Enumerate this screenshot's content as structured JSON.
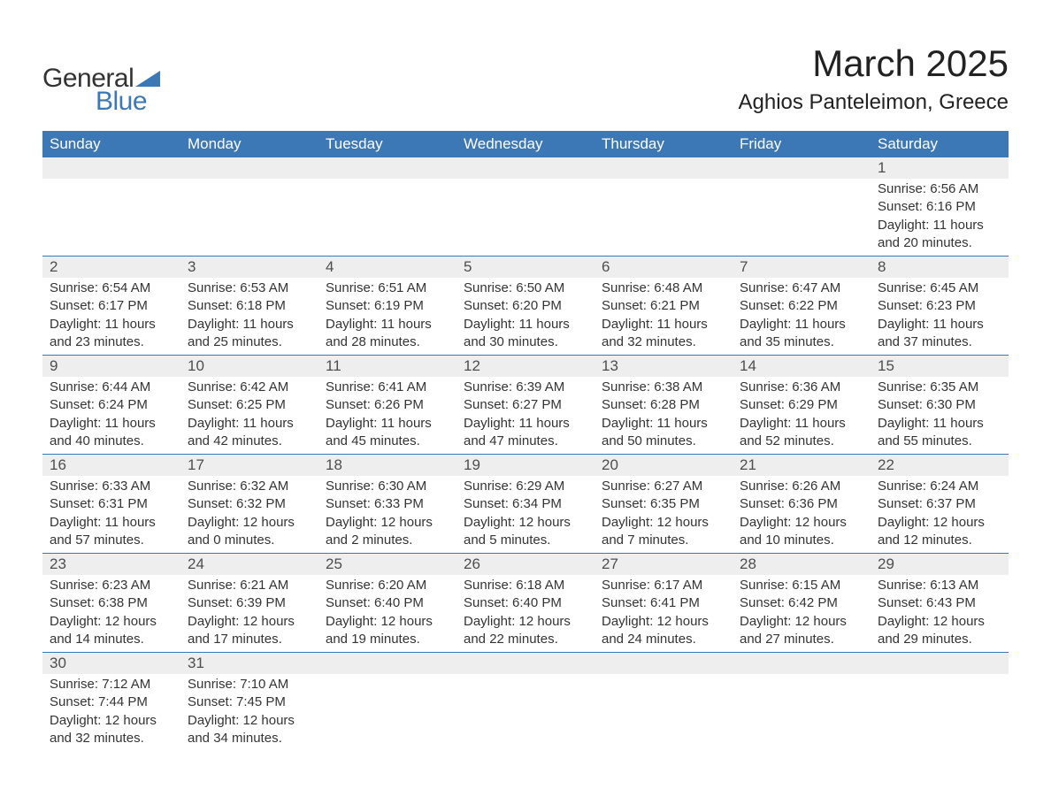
{
  "logo": {
    "line1": "General",
    "line2": "Blue"
  },
  "month_title": "March 2025",
  "location": "Aghios Panteleimon, Greece",
  "weekdays": [
    "Sunday",
    "Monday",
    "Tuesday",
    "Wednesday",
    "Thursday",
    "Friday",
    "Saturday"
  ],
  "colors": {
    "header_bg": "#3d78b6",
    "header_text": "#ffffff",
    "day_header_bg": "#eeeeee",
    "body_text": "#343434",
    "row_border": "#3d78b6",
    "background": "#ffffff"
  },
  "typography": {
    "month_title_fontsize": 42,
    "location_fontsize": 24,
    "weekday_fontsize": 17,
    "daynum_fontsize": 17,
    "body_fontsize": 15
  },
  "layout": {
    "columns": 7,
    "rows": 6,
    "first_day_column_index": 6
  },
  "weeks": [
    [
      null,
      null,
      null,
      null,
      null,
      null,
      {
        "n": "1",
        "sunrise": "Sunrise: 6:56 AM",
        "sunset": "Sunset: 6:16 PM",
        "daylight1": "Daylight: 11 hours",
        "daylight2": "and 20 minutes."
      }
    ],
    [
      {
        "n": "2",
        "sunrise": "Sunrise: 6:54 AM",
        "sunset": "Sunset: 6:17 PM",
        "daylight1": "Daylight: 11 hours",
        "daylight2": "and 23 minutes."
      },
      {
        "n": "3",
        "sunrise": "Sunrise: 6:53 AM",
        "sunset": "Sunset: 6:18 PM",
        "daylight1": "Daylight: 11 hours",
        "daylight2": "and 25 minutes."
      },
      {
        "n": "4",
        "sunrise": "Sunrise: 6:51 AM",
        "sunset": "Sunset: 6:19 PM",
        "daylight1": "Daylight: 11 hours",
        "daylight2": "and 28 minutes."
      },
      {
        "n": "5",
        "sunrise": "Sunrise: 6:50 AM",
        "sunset": "Sunset: 6:20 PM",
        "daylight1": "Daylight: 11 hours",
        "daylight2": "and 30 minutes."
      },
      {
        "n": "6",
        "sunrise": "Sunrise: 6:48 AM",
        "sunset": "Sunset: 6:21 PM",
        "daylight1": "Daylight: 11 hours",
        "daylight2": "and 32 minutes."
      },
      {
        "n": "7",
        "sunrise": "Sunrise: 6:47 AM",
        "sunset": "Sunset: 6:22 PM",
        "daylight1": "Daylight: 11 hours",
        "daylight2": "and 35 minutes."
      },
      {
        "n": "8",
        "sunrise": "Sunrise: 6:45 AM",
        "sunset": "Sunset: 6:23 PM",
        "daylight1": "Daylight: 11 hours",
        "daylight2": "and 37 minutes."
      }
    ],
    [
      {
        "n": "9",
        "sunrise": "Sunrise: 6:44 AM",
        "sunset": "Sunset: 6:24 PM",
        "daylight1": "Daylight: 11 hours",
        "daylight2": "and 40 minutes."
      },
      {
        "n": "10",
        "sunrise": "Sunrise: 6:42 AM",
        "sunset": "Sunset: 6:25 PM",
        "daylight1": "Daylight: 11 hours",
        "daylight2": "and 42 minutes."
      },
      {
        "n": "11",
        "sunrise": "Sunrise: 6:41 AM",
        "sunset": "Sunset: 6:26 PM",
        "daylight1": "Daylight: 11 hours",
        "daylight2": "and 45 minutes."
      },
      {
        "n": "12",
        "sunrise": "Sunrise: 6:39 AM",
        "sunset": "Sunset: 6:27 PM",
        "daylight1": "Daylight: 11 hours",
        "daylight2": "and 47 minutes."
      },
      {
        "n": "13",
        "sunrise": "Sunrise: 6:38 AM",
        "sunset": "Sunset: 6:28 PM",
        "daylight1": "Daylight: 11 hours",
        "daylight2": "and 50 minutes."
      },
      {
        "n": "14",
        "sunrise": "Sunrise: 6:36 AM",
        "sunset": "Sunset: 6:29 PM",
        "daylight1": "Daylight: 11 hours",
        "daylight2": "and 52 minutes."
      },
      {
        "n": "15",
        "sunrise": "Sunrise: 6:35 AM",
        "sunset": "Sunset: 6:30 PM",
        "daylight1": "Daylight: 11 hours",
        "daylight2": "and 55 minutes."
      }
    ],
    [
      {
        "n": "16",
        "sunrise": "Sunrise: 6:33 AM",
        "sunset": "Sunset: 6:31 PM",
        "daylight1": "Daylight: 11 hours",
        "daylight2": "and 57 minutes."
      },
      {
        "n": "17",
        "sunrise": "Sunrise: 6:32 AM",
        "sunset": "Sunset: 6:32 PM",
        "daylight1": "Daylight: 12 hours",
        "daylight2": "and 0 minutes."
      },
      {
        "n": "18",
        "sunrise": "Sunrise: 6:30 AM",
        "sunset": "Sunset: 6:33 PM",
        "daylight1": "Daylight: 12 hours",
        "daylight2": "and 2 minutes."
      },
      {
        "n": "19",
        "sunrise": "Sunrise: 6:29 AM",
        "sunset": "Sunset: 6:34 PM",
        "daylight1": "Daylight: 12 hours",
        "daylight2": "and 5 minutes."
      },
      {
        "n": "20",
        "sunrise": "Sunrise: 6:27 AM",
        "sunset": "Sunset: 6:35 PM",
        "daylight1": "Daylight: 12 hours",
        "daylight2": "and 7 minutes."
      },
      {
        "n": "21",
        "sunrise": "Sunrise: 6:26 AM",
        "sunset": "Sunset: 6:36 PM",
        "daylight1": "Daylight: 12 hours",
        "daylight2": "and 10 minutes."
      },
      {
        "n": "22",
        "sunrise": "Sunrise: 6:24 AM",
        "sunset": "Sunset: 6:37 PM",
        "daylight1": "Daylight: 12 hours",
        "daylight2": "and 12 minutes."
      }
    ],
    [
      {
        "n": "23",
        "sunrise": "Sunrise: 6:23 AM",
        "sunset": "Sunset: 6:38 PM",
        "daylight1": "Daylight: 12 hours",
        "daylight2": "and 14 minutes."
      },
      {
        "n": "24",
        "sunrise": "Sunrise: 6:21 AM",
        "sunset": "Sunset: 6:39 PM",
        "daylight1": "Daylight: 12 hours",
        "daylight2": "and 17 minutes."
      },
      {
        "n": "25",
        "sunrise": "Sunrise: 6:20 AM",
        "sunset": "Sunset: 6:40 PM",
        "daylight1": "Daylight: 12 hours",
        "daylight2": "and 19 minutes."
      },
      {
        "n": "26",
        "sunrise": "Sunrise: 6:18 AM",
        "sunset": "Sunset: 6:40 PM",
        "daylight1": "Daylight: 12 hours",
        "daylight2": "and 22 minutes."
      },
      {
        "n": "27",
        "sunrise": "Sunrise: 6:17 AM",
        "sunset": "Sunset: 6:41 PM",
        "daylight1": "Daylight: 12 hours",
        "daylight2": "and 24 minutes."
      },
      {
        "n": "28",
        "sunrise": "Sunrise: 6:15 AM",
        "sunset": "Sunset: 6:42 PM",
        "daylight1": "Daylight: 12 hours",
        "daylight2": "and 27 minutes."
      },
      {
        "n": "29",
        "sunrise": "Sunrise: 6:13 AM",
        "sunset": "Sunset: 6:43 PM",
        "daylight1": "Daylight: 12 hours",
        "daylight2": "and 29 minutes."
      }
    ],
    [
      {
        "n": "30",
        "sunrise": "Sunrise: 7:12 AM",
        "sunset": "Sunset: 7:44 PM",
        "daylight1": "Daylight: 12 hours",
        "daylight2": "and 32 minutes."
      },
      {
        "n": "31",
        "sunrise": "Sunrise: 7:10 AM",
        "sunset": "Sunset: 7:45 PM",
        "daylight1": "Daylight: 12 hours",
        "daylight2": "and 34 minutes."
      },
      null,
      null,
      null,
      null,
      null
    ]
  ]
}
